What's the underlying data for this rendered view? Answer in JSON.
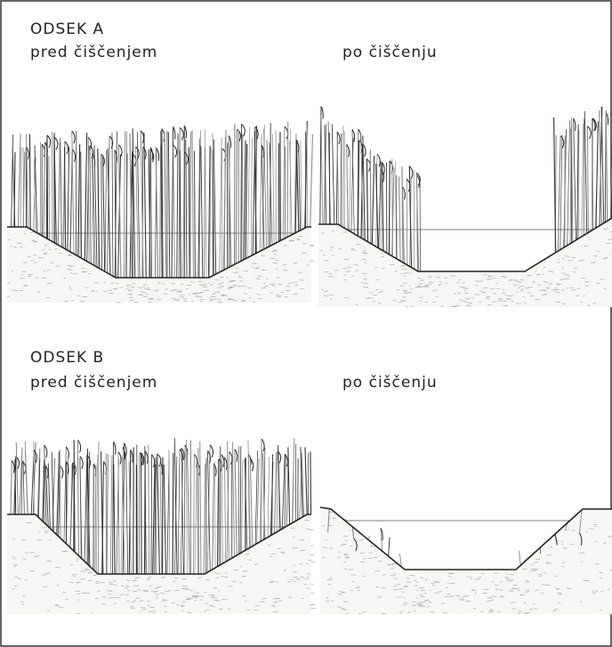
{
  "sections": [
    {
      "title": "ODSEK A",
      "before": "pred čiščenjem",
      "after": "po čiščenju"
    },
    {
      "title": "ODSEK B",
      "before": "pred čiščenjem",
      "after": "po čiščenju"
    }
  ]
}
